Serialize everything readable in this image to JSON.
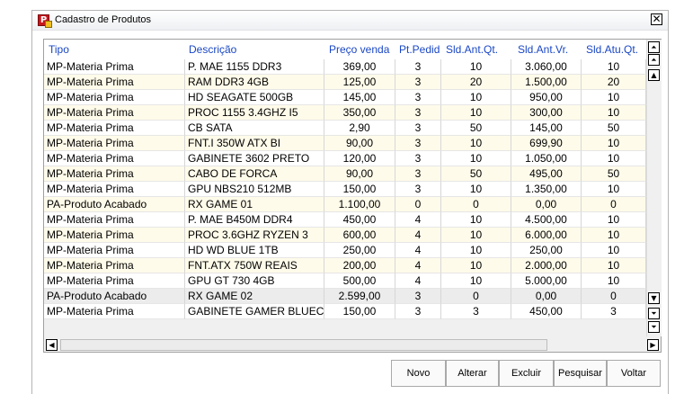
{
  "window": {
    "title": "Cadastro de Produtos",
    "close_label": "✕"
  },
  "table": {
    "columns": [
      "Tipo",
      "Descrição",
      "Preço venda",
      "Pt.Pedid",
      "Sld.Ant.Qt.",
      "Sld.Ant.Vr.",
      "Sld.Atu.Qt."
    ],
    "rows": [
      [
        "MP-Materia Prima",
        " P. MAE 1155 DDR3",
        "369,00",
        "3",
        "10",
        "3.060,00",
        "10"
      ],
      [
        "MP-Materia Prima",
        "RAM DDR3 4GB",
        "125,00",
        "3",
        "20",
        "1.500,00",
        "20"
      ],
      [
        "MP-Materia Prima",
        "HD SEAGATE 500GB",
        "145,00",
        "3",
        "10",
        "950,00",
        "10"
      ],
      [
        "MP-Materia Prima",
        "PROC 1155 3.4GHZ I5",
        "350,00",
        "3",
        "10",
        "300,00",
        "10"
      ],
      [
        "MP-Materia Prima",
        "CB SATA",
        "2,90",
        "3",
        "50",
        "145,00",
        "50"
      ],
      [
        "MP-Materia Prima",
        "FNT.I 350W ATX BI",
        "90,00",
        "3",
        "10",
        "699,90",
        "10"
      ],
      [
        "MP-Materia Prima",
        " GABINETE 3602 PRETO",
        "120,00",
        "3",
        "10",
        "1.050,00",
        "10"
      ],
      [
        "MP-Materia Prima",
        "CABO DE FORCA",
        "90,00",
        "3",
        "50",
        "495,00",
        "50"
      ],
      [
        "MP-Materia Prima",
        "GPU NBS210 512MB",
        "150,00",
        "3",
        "10",
        "1.350,00",
        "10"
      ],
      [
        "PA-Produto Acabado",
        "RX GAME 01",
        "1.100,00",
        "0",
        "0",
        "0,00",
        "0"
      ],
      [
        "MP-Materia Prima",
        "P. MAE B450M DDR4",
        "450,00",
        "4",
        "10",
        "4.500,00",
        "10"
      ],
      [
        "MP-Materia Prima",
        "PROC 3.6GHZ RYZEN 3",
        "600,00",
        "4",
        "10",
        "6.000,00",
        "10"
      ],
      [
        "MP-Materia Prima",
        "HD WD BLUE 1TB",
        "250,00",
        "4",
        "10",
        "250,00",
        "10"
      ],
      [
        "MP-Materia Prima",
        "FNT.ATX 750W REAIS",
        "200,00",
        "4",
        "10",
        "2.000,00",
        "10"
      ],
      [
        "MP-Materia Prima",
        "GPU GT 730 4GB",
        "500,00",
        "4",
        "10",
        "5.000,00",
        "10"
      ],
      [
        "PA-Produto Acabado",
        "RX GAME 02",
        "2.599,00",
        "3",
        "0",
        "0,00",
        "0"
      ],
      [
        "MP-Materia Prima",
        "GABINETE GAMER BLUEC",
        "150,00",
        "3",
        "3",
        "450,00",
        "3"
      ]
    ]
  },
  "scroll": {
    "first": "⏶",
    "up": "▲",
    "down": "▼",
    "last": "⏷",
    "bottom": "⏷",
    "left": "◀",
    "right": "▶"
  },
  "buttons": {
    "novo": "Novo",
    "alterar": "Alterar",
    "excluir": "Excluir",
    "pesquisar": "Pesquisar",
    "voltar": "Voltar"
  }
}
